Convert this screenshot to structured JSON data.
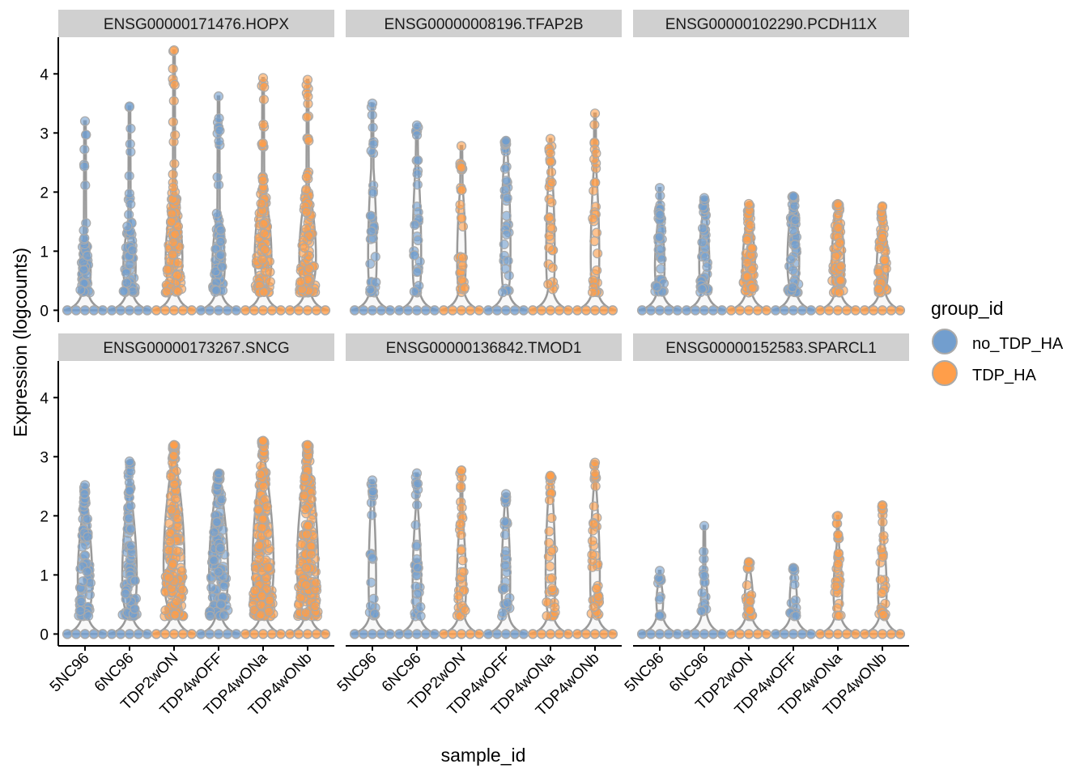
{
  "chart_data": {
    "type": "violin",
    "xlabel": "sample_id",
    "ylabel": "Expression (logcounts)",
    "ylim": [
      -0.2,
      4.62
    ],
    "yticks": [
      0,
      1,
      2,
      3,
      4
    ],
    "grid": false,
    "legend": {
      "title": "group_id",
      "placement": "right",
      "entries": [
        {
          "name": "no_TDP_HA",
          "color": "#729ECE"
        },
        {
          "name": "TDP_HA",
          "color": "#FF9E4A"
        }
      ]
    },
    "samples": [
      "5NC96",
      "6NC96",
      "TDP2wON",
      "TDP4wOFF",
      "TDP4wONa",
      "TDP4wONb"
    ],
    "sample_groups": [
      "no_TDP_HA",
      "no_TDP_HA",
      "TDP_HA",
      "no_TDP_HA",
      "TDP_HA",
      "TDP_HA"
    ],
    "facets": [
      {
        "title": "ENSG00000171476.HOPX",
        "max": [
          3.2,
          3.45,
          4.4,
          3.62,
          3.93,
          3.9
        ],
        "bulk_top": [
          1.2,
          1.5,
          2.0,
          1.65,
          2.1,
          2.1
        ],
        "density": [
          0.5,
          0.6,
          1.0,
          0.6,
          1.0,
          1.0
        ]
      },
      {
        "title": "ENSG00000008196.TFAP2B",
        "max": [
          3.5,
          3.13,
          2.78,
          2.87,
          2.9,
          3.33
        ],
        "bulk_top": [
          2.4,
          2.5,
          2.1,
          2.8,
          2.5,
          2.4
        ],
        "density": [
          0.25,
          0.25,
          0.25,
          0.3,
          0.25,
          0.25
        ]
      },
      {
        "title": "ENSG00000102290.PCDH11X",
        "max": [
          2.07,
          1.9,
          1.8,
          1.93,
          1.8,
          1.76
        ],
        "bulk_top": [
          1.6,
          1.7,
          1.6,
          1.9,
          1.75,
          1.5
        ],
        "density": [
          0.35,
          0.4,
          0.6,
          0.55,
          0.6,
          0.5
        ]
      },
      {
        "title": "ENSG00000173267.SNCG",
        "max": [
          2.52,
          2.92,
          3.2,
          2.72,
          3.27,
          3.2
        ],
        "bulk_top": [
          2.2,
          2.4,
          3.0,
          2.6,
          3.0,
          3.0
        ],
        "density": [
          0.8,
          0.8,
          1.6,
          1.2,
          1.8,
          1.8
        ]
      },
      {
        "title": "ENSG00000136842.TMOD1",
        "max": [
          2.6,
          2.72,
          2.77,
          2.37,
          2.68,
          2.9
        ],
        "bulk_top": [
          2.3,
          2.1,
          2.0,
          2.2,
          2.6,
          2.5
        ],
        "density": [
          0.15,
          0.25,
          0.3,
          0.25,
          0.35,
          0.35
        ]
      },
      {
        "title": "ENSG00000152583.SPARCL1",
        "max": [
          1.07,
          1.83,
          1.22,
          1.12,
          2.0,
          2.18
        ],
        "bulk_top": [
          0.9,
          0.95,
          1.1,
          1.05,
          1.5,
          1.65
        ],
        "density": [
          0.08,
          0.1,
          0.2,
          0.12,
          0.25,
          0.25
        ]
      }
    ]
  }
}
